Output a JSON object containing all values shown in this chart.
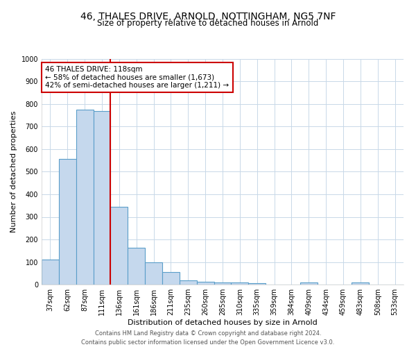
{
  "title1": "46, THALES DRIVE, ARNOLD, NOTTINGHAM, NG5 7NF",
  "title2": "Size of property relative to detached houses in Arnold",
  "xlabel": "Distribution of detached houses by size in Arnold",
  "ylabel": "Number of detached properties",
  "categories": [
    "37sqm",
    "62sqm",
    "87sqm",
    "111sqm",
    "136sqm",
    "161sqm",
    "186sqm",
    "211sqm",
    "235sqm",
    "260sqm",
    "285sqm",
    "310sqm",
    "335sqm",
    "359sqm",
    "384sqm",
    "409sqm",
    "434sqm",
    "459sqm",
    "483sqm",
    "508sqm",
    "533sqm"
  ],
  "values": [
    110,
    557,
    775,
    770,
    345,
    163,
    98,
    55,
    18,
    13,
    10,
    8,
    6,
    0,
    0,
    8,
    0,
    0,
    8,
    0,
    0
  ],
  "bar_color": "#c5d8ed",
  "bar_edge_color": "#5a9ec9",
  "vline_x": 3.5,
  "vline_color": "#cc0000",
  "annotation_text": "46 THALES DRIVE: 118sqm\n← 58% of detached houses are smaller (1,673)\n42% of semi-detached houses are larger (1,211) →",
  "annotation_box_color": "#ffffff",
  "annotation_box_edge": "#cc0000",
  "ylim": [
    0,
    1000
  ],
  "yticks": [
    0,
    100,
    200,
    300,
    400,
    500,
    600,
    700,
    800,
    900,
    1000
  ],
  "footer": "Contains HM Land Registry data © Crown copyright and database right 2024.\nContains public sector information licensed under the Open Government Licence v3.0.",
  "bg_color": "#ffffff",
  "grid_color": "#c8d8e8",
  "title1_fontsize": 10,
  "title2_fontsize": 8.5,
  "xlabel_fontsize": 8,
  "ylabel_fontsize": 8,
  "tick_fontsize": 7,
  "footer_fontsize": 6
}
